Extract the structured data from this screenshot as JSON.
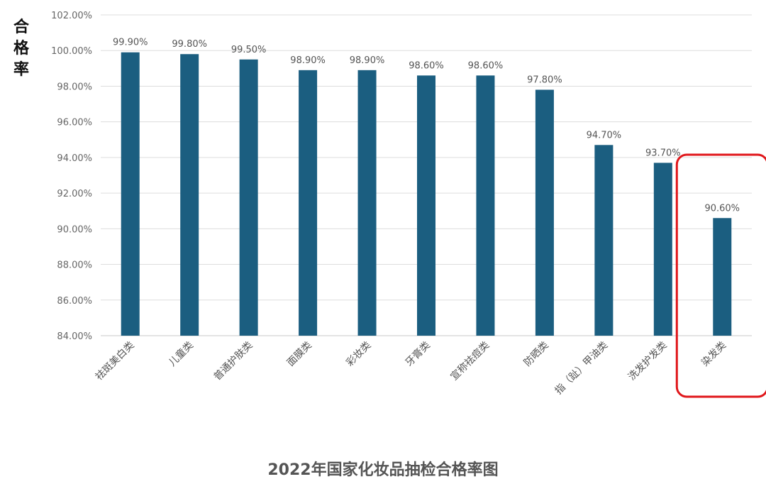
{
  "chart_data": {
    "type": "bar",
    "title": "2022年国家化妆品抽检合格率图",
    "ylabel": "合格率",
    "xlabel": "",
    "ylim": [
      84,
      102
    ],
    "yticks": [
      84,
      86,
      88,
      90,
      92,
      94,
      96,
      98,
      100,
      102
    ],
    "ytick_labels": [
      "84.00%",
      "86.00%",
      "88.00%",
      "90.00%",
      "92.00%",
      "94.00%",
      "96.00%",
      "98.00%",
      "100.00%",
      "102.00%"
    ],
    "categories": [
      "祛斑美白类",
      "儿童类",
      "普通护肤类",
      "面膜类",
      "彩妆类",
      "牙膏类",
      "宣称祛痘类",
      "防晒类",
      "指（趾）甲油类",
      "洗发护发类",
      "染发类"
    ],
    "values": [
      99.9,
      99.8,
      99.5,
      98.9,
      98.9,
      98.6,
      98.6,
      97.8,
      94.7,
      93.7,
      90.6
    ],
    "data_labels": [
      "99.90%",
      "99.80%",
      "99.50%",
      "98.90%",
      "98.90%",
      "98.60%",
      "98.60%",
      "97.80%",
      "94.70%",
      "93.70%",
      "90.60%"
    ],
    "grid": true,
    "legend": "none",
    "bar_color": "#1b5e80",
    "highlight": {
      "category": "染发类",
      "color": "#e0171b"
    }
  }
}
